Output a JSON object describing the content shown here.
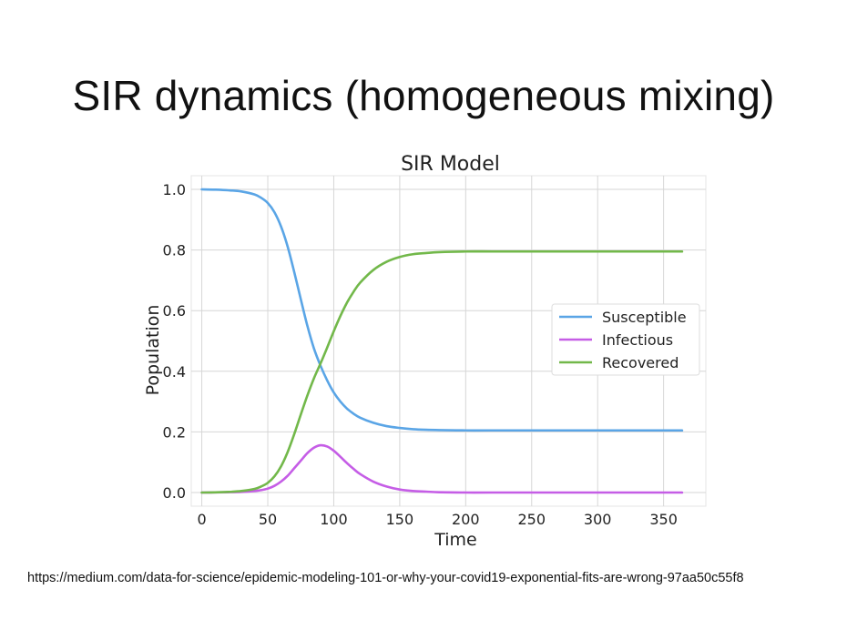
{
  "slide": {
    "title": "SIR dynamics (homogeneous mixing)",
    "source_url": "https://medium.com/data-for-science/epidemic-modeling-101-or-why-your-covid19-exponential-fits-are-wrong-97aa50c55f8"
  },
  "chart_data": {
    "type": "line",
    "title": "SIR Model",
    "xlabel": "Time",
    "ylabel": "Population",
    "xlim": [
      -8,
      382
    ],
    "ylim": [
      -0.045,
      1.045
    ],
    "xticks": [
      0,
      50,
      100,
      150,
      200,
      250,
      300,
      350
    ],
    "yticks": [
      0.0,
      0.2,
      0.4,
      0.6,
      0.8,
      1.0
    ],
    "ytick_labels": [
      "0.0",
      "0.2",
      "0.4",
      "0.6",
      "0.8",
      "1.0"
    ],
    "grid": true,
    "legend_position": "center-right",
    "x": [
      0,
      10,
      20,
      30,
      40,
      45,
      50,
      55,
      60,
      65,
      70,
      75,
      80,
      85,
      90,
      95,
      100,
      105,
      110,
      115,
      120,
      130,
      140,
      150,
      160,
      170,
      180,
      200,
      220,
      250,
      300,
      364
    ],
    "series": [
      {
        "name": "Susceptible",
        "color": "#5aa5e6",
        "values": [
          1.0,
          0.999,
          0.997,
          0.993,
          0.983,
          0.972,
          0.955,
          0.925,
          0.878,
          0.812,
          0.728,
          0.638,
          0.55,
          0.475,
          0.418,
          0.37,
          0.33,
          0.3,
          0.277,
          0.26,
          0.247,
          0.23,
          0.219,
          0.213,
          0.209,
          0.207,
          0.206,
          0.205,
          0.205,
          0.205,
          0.205,
          0.205
        ]
      },
      {
        "name": "Infectious",
        "color": "#c55de6",
        "values": [
          0.0,
          0.0005,
          0.001,
          0.002,
          0.005,
          0.008,
          0.013,
          0.022,
          0.036,
          0.055,
          0.08,
          0.105,
          0.13,
          0.148,
          0.156,
          0.152,
          0.138,
          0.118,
          0.097,
          0.078,
          0.061,
          0.036,
          0.02,
          0.01,
          0.005,
          0.003,
          0.001,
          0.0,
          0.0,
          0.0,
          0.0,
          0.0
        ]
      },
      {
        "name": "Recovered",
        "color": "#72b84a",
        "values": [
          0.0,
          0.0005,
          0.002,
          0.005,
          0.012,
          0.02,
          0.032,
          0.053,
          0.086,
          0.133,
          0.192,
          0.257,
          0.32,
          0.377,
          0.426,
          0.478,
          0.532,
          0.582,
          0.626,
          0.662,
          0.692,
          0.734,
          0.761,
          0.777,
          0.786,
          0.79,
          0.793,
          0.795,
          0.795,
          0.795,
          0.795,
          0.795
        ]
      }
    ]
  }
}
